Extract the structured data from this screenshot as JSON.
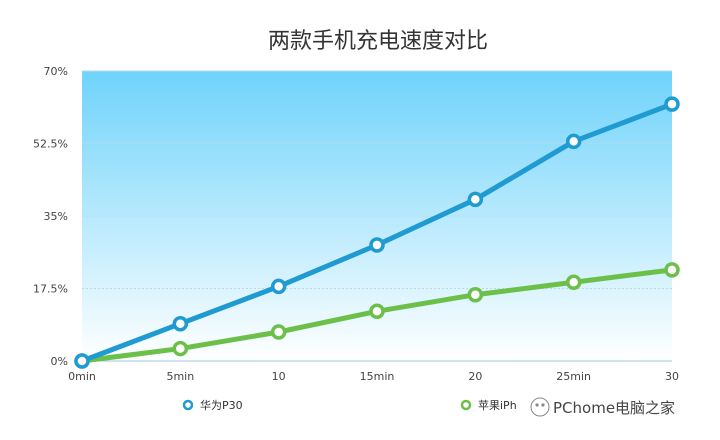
{
  "chart_data": {
    "type": "line",
    "title": "两款手机充电速度对比",
    "categories": [
      "0min",
      "5min",
      "10",
      "15min",
      "20",
      "25min",
      "30"
    ],
    "y_ticks": [
      "70%",
      "52.5%",
      "35%",
      "17.5%",
      "0%"
    ],
    "ylim": [
      0,
      70
    ],
    "grid": true,
    "legend_position": "bottom",
    "series": [
      {
        "name": "华为P30",
        "values": [
          0,
          9,
          18,
          28,
          39,
          53,
          62
        ],
        "color": "#1f9bd1"
      },
      {
        "name": "苹果iPh",
        "values": [
          0,
          3,
          7,
          12,
          16,
          19,
          22
        ],
        "color": "#6cc04a"
      }
    ],
    "background": {
      "top": "#6fd3fb",
      "bottom": "#ffffff"
    }
  },
  "watermark": {
    "text": "PChome电脑之家"
  }
}
